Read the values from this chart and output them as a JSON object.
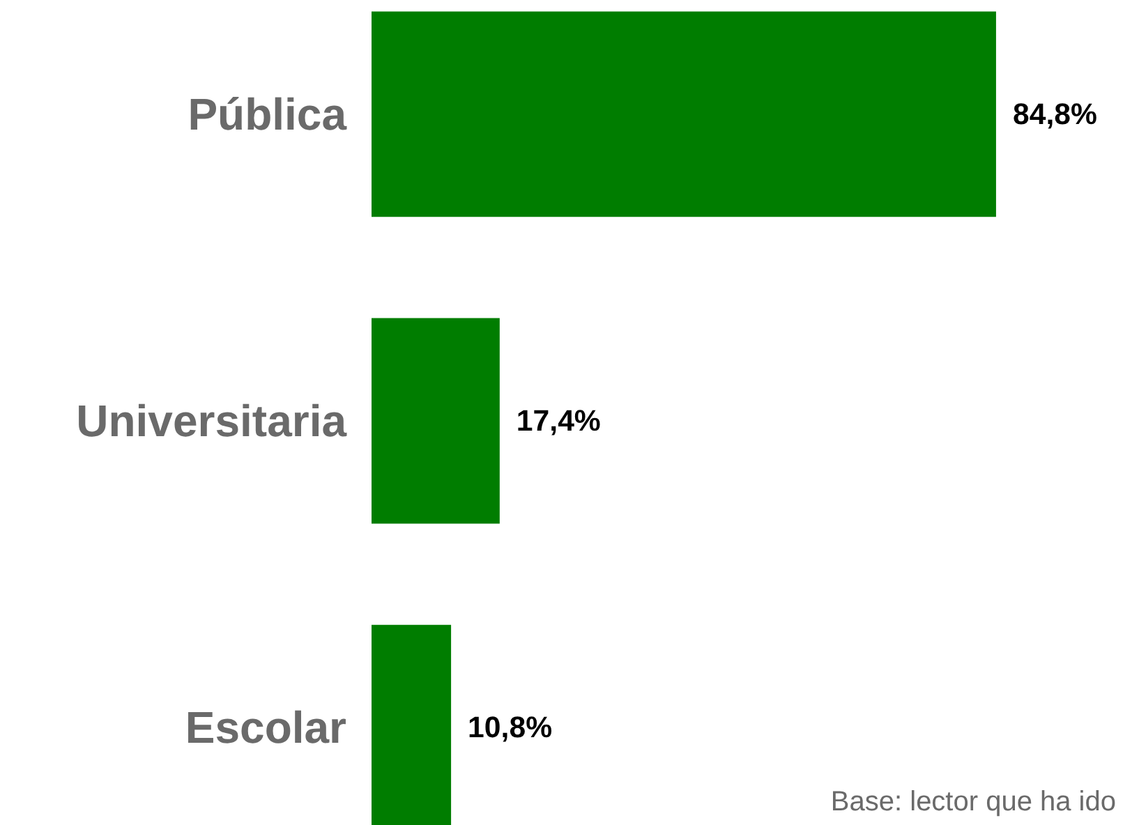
{
  "chart_data": {
    "type": "bar",
    "orientation": "horizontal",
    "categories": [
      "Pública",
      "Universitaria",
      "Escolar"
    ],
    "values": [
      84.8,
      17.4,
      10.8
    ],
    "value_labels": [
      "84,8%",
      "17,4%",
      "10,8%"
    ],
    "color": "#007d00",
    "grid": false,
    "tick_labels": "y",
    "annotations": [
      "Base: lector que ha ido"
    ]
  }
}
